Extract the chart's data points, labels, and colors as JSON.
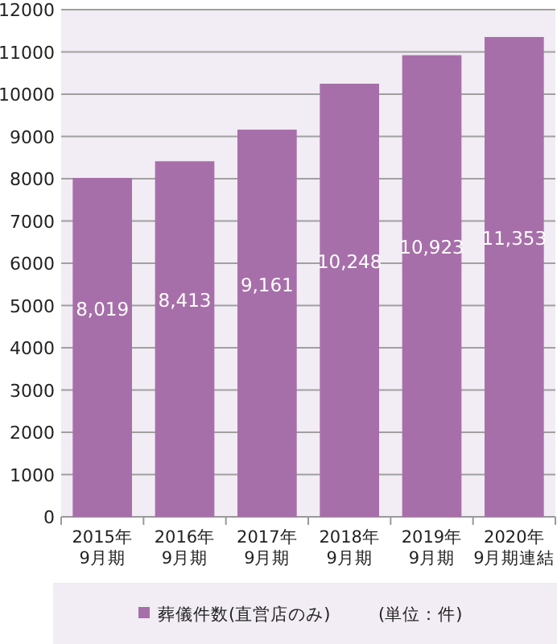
{
  "chart_data": {
    "type": "bar",
    "categories": [
      "2015年\n9月期",
      "2016年\n9月期",
      "2017年\n9月期",
      "2018年\n9月期",
      "2019年\n9月期",
      "2020年\n9月期連結"
    ],
    "series": [
      {
        "name": "葬儀件数(直営店のみ)",
        "color": "#a76fa9",
        "values": [
          8019,
          8413,
          9161,
          10248,
          10923,
          11353
        ]
      }
    ],
    "value_labels": [
      "8,019",
      "8,413",
      "9,161",
      "10,248",
      "10,923",
      "11,353"
    ],
    "ylim": [
      0,
      12000
    ],
    "yticks": [
      0,
      1000,
      2000,
      3000,
      4000,
      5000,
      6000,
      7000,
      8000,
      9000,
      10000,
      11000,
      12000
    ],
    "grid": "y",
    "legend": "bottom",
    "annotations": [
      "(単位：件)"
    ]
  }
}
